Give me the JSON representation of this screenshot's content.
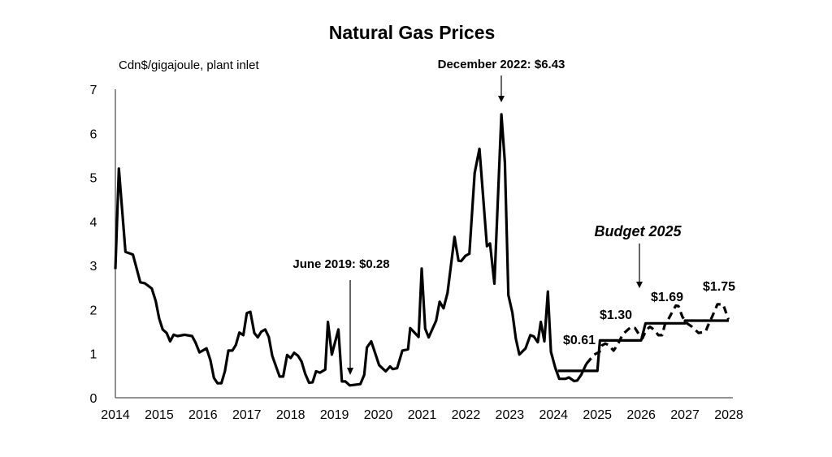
{
  "chart_data": {
    "type": "line",
    "title": "Natural Gas Prices",
    "ylabel": "Cdn$/gigajoule, plant inlet",
    "xlabel": "",
    "xlim": [
      2014,
      2028
    ],
    "ylim": [
      0,
      7
    ],
    "x_ticks": [
      "2014",
      "2015",
      "2016",
      "2017",
      "2018",
      "2019",
      "2020",
      "2021",
      "2022",
      "2023",
      "2024",
      "2025",
      "2026",
      "2027",
      "2028"
    ],
    "y_ticks": [
      "0",
      "1",
      "2",
      "3",
      "4",
      "5",
      "6",
      "7"
    ],
    "grid": false,
    "legend": "none",
    "colors": {
      "line": "#000000"
    },
    "series": [
      {
        "style": "solid",
        "points": [
          [
            2014.0,
            2.92
          ],
          [
            2014.08,
            5.2
          ],
          [
            2014.23,
            3.31
          ],
          [
            2014.4,
            3.25
          ],
          [
            2014.57,
            2.62
          ],
          [
            2014.67,
            2.6
          ],
          [
            2014.83,
            2.48
          ],
          [
            2014.92,
            2.2
          ],
          [
            2015.0,
            1.8
          ],
          [
            2015.08,
            1.55
          ],
          [
            2015.17,
            1.47
          ],
          [
            2015.25,
            1.28
          ],
          [
            2015.33,
            1.43
          ],
          [
            2015.42,
            1.4
          ],
          [
            2015.58,
            1.43
          ],
          [
            2015.75,
            1.4
          ],
          [
            2015.83,
            1.25
          ],
          [
            2015.92,
            1.03
          ],
          [
            2016.08,
            1.12
          ],
          [
            2016.17,
            0.85
          ],
          [
            2016.25,
            0.45
          ],
          [
            2016.33,
            0.33
          ],
          [
            2016.42,
            0.33
          ],
          [
            2016.5,
            0.6
          ],
          [
            2016.58,
            1.07
          ],
          [
            2016.67,
            1.07
          ],
          [
            2016.75,
            1.2
          ],
          [
            2016.83,
            1.48
          ],
          [
            2016.92,
            1.42
          ],
          [
            2017.0,
            1.92
          ],
          [
            2017.08,
            1.95
          ],
          [
            2017.17,
            1.47
          ],
          [
            2017.25,
            1.37
          ],
          [
            2017.33,
            1.5
          ],
          [
            2017.42,
            1.55
          ],
          [
            2017.5,
            1.38
          ],
          [
            2017.58,
            0.95
          ],
          [
            2017.67,
            0.7
          ],
          [
            2017.75,
            0.48
          ],
          [
            2017.83,
            0.48
          ],
          [
            2017.92,
            0.97
          ],
          [
            2018.0,
            0.9
          ],
          [
            2018.08,
            1.02
          ],
          [
            2018.17,
            0.95
          ],
          [
            2018.25,
            0.82
          ],
          [
            2018.33,
            0.55
          ],
          [
            2018.42,
            0.34
          ],
          [
            2018.5,
            0.35
          ],
          [
            2018.58,
            0.6
          ],
          [
            2018.67,
            0.57
          ],
          [
            2018.79,
            0.64
          ],
          [
            2018.85,
            1.72
          ],
          [
            2018.94,
            0.98
          ],
          [
            2019.09,
            1.55
          ],
          [
            2019.17,
            0.37
          ],
          [
            2019.25,
            0.37
          ],
          [
            2019.35,
            0.28
          ],
          [
            2019.59,
            0.31
          ],
          [
            2019.68,
            0.52
          ],
          [
            2019.74,
            1.14
          ],
          [
            2019.84,
            1.28
          ],
          [
            2020.02,
            0.74
          ],
          [
            2020.17,
            0.6
          ],
          [
            2020.27,
            0.71
          ],
          [
            2020.33,
            0.65
          ],
          [
            2020.43,
            0.67
          ],
          [
            2020.55,
            1.07
          ],
          [
            2020.68,
            1.1
          ],
          [
            2020.73,
            1.58
          ],
          [
            2020.92,
            1.38
          ],
          [
            2020.99,
            2.93
          ],
          [
            2021.07,
            1.57
          ],
          [
            2021.15,
            1.37
          ],
          [
            2021.32,
            1.75
          ],
          [
            2021.4,
            2.18
          ],
          [
            2021.49,
            2.03
          ],
          [
            2021.58,
            2.38
          ],
          [
            2021.74,
            3.65
          ],
          [
            2021.83,
            3.11
          ],
          [
            2021.89,
            3.1
          ],
          [
            2021.99,
            3.22
          ],
          [
            2022.08,
            3.27
          ],
          [
            2022.2,
            5.1
          ],
          [
            2022.31,
            5.65
          ],
          [
            2022.48,
            3.44
          ],
          [
            2022.55,
            3.5
          ],
          [
            2022.65,
            2.59
          ],
          [
            2022.81,
            6.43
          ],
          [
            2022.89,
            5.34
          ],
          [
            2022.97,
            2.33
          ],
          [
            2023.06,
            1.93
          ],
          [
            2023.14,
            1.34
          ],
          [
            2023.22,
            0.98
          ],
          [
            2023.36,
            1.12
          ],
          [
            2023.47,
            1.42
          ],
          [
            2023.55,
            1.39
          ],
          [
            2023.64,
            1.26
          ],
          [
            2023.71,
            1.72
          ],
          [
            2023.79,
            1.28
          ],
          [
            2023.87,
            2.41
          ],
          [
            2023.94,
            1.04
          ],
          [
            2024.04,
            0.68
          ],
          [
            2024.13,
            0.43
          ],
          [
            2024.27,
            0.43
          ],
          [
            2024.35,
            0.46
          ],
          [
            2024.47,
            0.38
          ],
          [
            2024.54,
            0.39
          ],
          [
            2024.63,
            0.52
          ],
          [
            2024.75,
            0.77
          ]
        ]
      },
      {
        "style": "dashed",
        "points": [
          [
            2024.75,
            0.77
          ],
          [
            2024.93,
            0.98
          ],
          [
            2025.05,
            1.04
          ],
          [
            2025.1,
            1.18
          ],
          [
            2025.18,
            1.23
          ],
          [
            2025.25,
            1.2
          ],
          [
            2025.37,
            1.07
          ],
          [
            2025.46,
            1.2
          ],
          [
            2025.58,
            1.44
          ],
          [
            2025.77,
            1.61
          ],
          [
            2025.86,
            1.58
          ],
          [
            2025.95,
            1.44
          ],
          [
            2026.03,
            1.35
          ],
          [
            2026.11,
            1.53
          ],
          [
            2026.2,
            1.61
          ],
          [
            2026.31,
            1.53
          ],
          [
            2026.39,
            1.42
          ],
          [
            2026.48,
            1.42
          ],
          [
            2026.54,
            1.66
          ],
          [
            2026.63,
            1.8
          ],
          [
            2026.79,
            2.09
          ],
          [
            2026.85,
            2.08
          ],
          [
            2026.94,
            1.84
          ],
          [
            2027.03,
            1.7
          ],
          [
            2027.16,
            1.61
          ],
          [
            2027.31,
            1.47
          ],
          [
            2027.47,
            1.5
          ],
          [
            2027.53,
            1.65
          ],
          [
            2027.62,
            1.84
          ],
          [
            2027.74,
            2.12
          ],
          [
            2027.87,
            2.12
          ],
          [
            2027.99,
            1.78
          ]
        ]
      },
      {
        "style": "solid-step",
        "points": [
          [
            2024.1,
            0.61
          ],
          [
            2025.0,
            0.61
          ],
          [
            2025.06,
            1.3
          ],
          [
            2026.0,
            1.3
          ],
          [
            2026.1,
            1.69
          ],
          [
            2027.0,
            1.69
          ],
          [
            2027.0,
            1.75
          ],
          [
            2028.0,
            1.75
          ]
        ]
      }
    ],
    "annotations": [
      {
        "text": "December 2022: $6.43",
        "x": 2022.81,
        "y": 6.43
      },
      {
        "text": "June 2019: $0.28",
        "x": 2019.35,
        "y": 0.28
      },
      {
        "text": "Budget 2025",
        "x": 2026.18,
        "y": 2.5
      },
      {
        "text": "$0.61",
        "x": 2024.55,
        "y": 0.61
      },
      {
        "text": "$1.30",
        "x": 2025.55,
        "y": 1.3
      },
      {
        "text": "$1.69",
        "x": 2026.55,
        "y": 1.69
      },
      {
        "text": "$1.75",
        "x": 2027.55,
        "y": 1.75
      }
    ]
  }
}
